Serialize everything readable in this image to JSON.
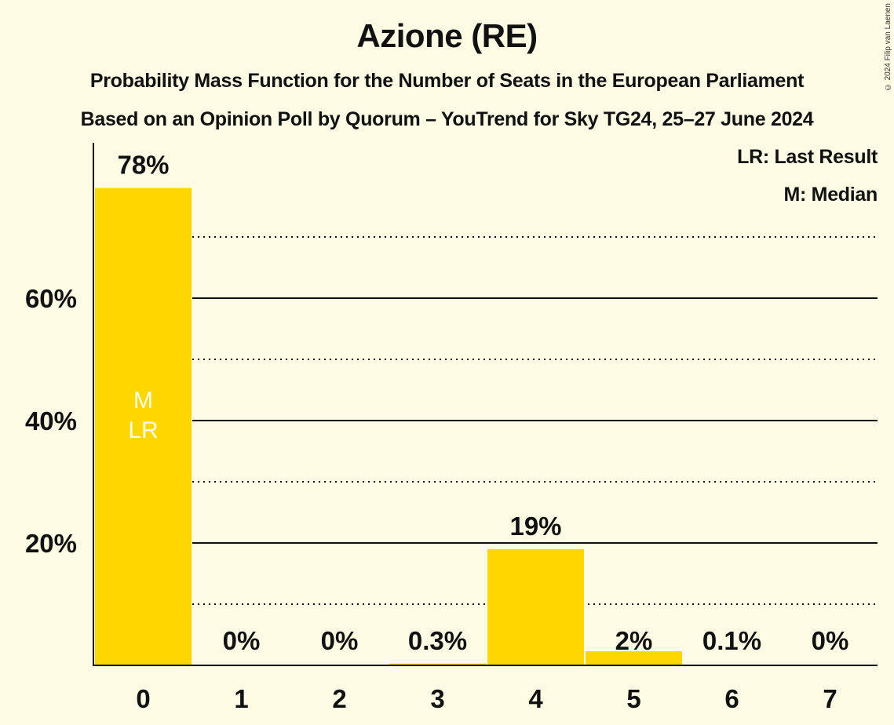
{
  "header": {
    "title": "Azione (RE)",
    "subtitle_1": "Probability Mass Function for the Number of Seats in the European Parliament",
    "subtitle_2": "Based on an Opinion Poll by Quorum – YouTrend for Sky TG24, 25–27 June 2024",
    "copyright": "© 2024 Filip van Laenen"
  },
  "legend": {
    "lr": "LR: Last Result",
    "m": "M: Median"
  },
  "colors": {
    "background": "#FEFBE4",
    "bar": "#FFD700",
    "text": "#111111",
    "bar_marker_text": "#FEFBE4"
  },
  "chart_data": {
    "type": "bar",
    "title": "Azione (RE)",
    "subtitle": "Probability Mass Function for the Number of Seats in the European Parliament",
    "xlabel": "",
    "ylabel": "",
    "categories": [
      "0",
      "1",
      "2",
      "3",
      "4",
      "5",
      "6",
      "7"
    ],
    "values": [
      78,
      0,
      0,
      0.3,
      19,
      2.3,
      0.1,
      0
    ],
    "value_labels": [
      "78%",
      "0%",
      "0%",
      "0.3%",
      "19%",
      "2%",
      "0.1%",
      "0%"
    ],
    "yticks": [
      "20%",
      "40%",
      "60%"
    ],
    "ytick_values": [
      20,
      40,
      60
    ],
    "minor_gridlines": [
      10,
      30,
      50,
      70
    ],
    "ylim": [
      0,
      85
    ],
    "grid": true,
    "legend_position": "top-right",
    "annotations": [
      {
        "category": "0",
        "labels": [
          "M",
          "LR"
        ]
      }
    ]
  }
}
